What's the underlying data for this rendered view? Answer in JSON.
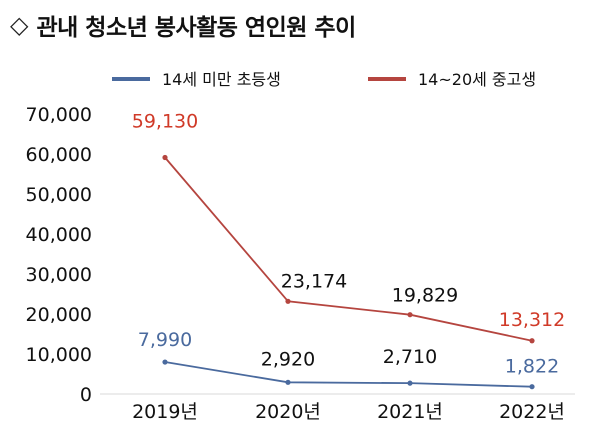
{
  "title_marker": "◇",
  "chart_data": {
    "type": "line",
    "title": "관내 청소년 봉사활동 연인원 추이",
    "categories": [
      "2019년",
      "2020년",
      "2021년",
      "2022년"
    ],
    "series": [
      {
        "name": "14세 미만 초등생",
        "color": "#4a6a9e",
        "values": [
          7990,
          2920,
          2710,
          1822
        ],
        "labels": [
          "7,990",
          "2,920",
          "2,710",
          "1,822"
        ],
        "label_colors": [
          "#4a6a9e",
          "#111111",
          "#111111",
          "#4a6a9e"
        ]
      },
      {
        "name": "14~20세 중고생",
        "color": "#b5453f",
        "values": [
          59130,
          23174,
          19829,
          13312
        ],
        "labels": [
          "59,130",
          "23,174",
          "19,829",
          "13,312"
        ],
        "label_colors": [
          "#d03a28",
          "#111111",
          "#111111",
          "#d03a28"
        ]
      }
    ],
    "yticks": [
      "0",
      "10,000",
      "20,000",
      "30,000",
      "40,000",
      "50,000",
      "60,000",
      "70,000"
    ],
    "ylim": [
      0,
      70000
    ],
    "legend_position": "top",
    "grid": false
  }
}
